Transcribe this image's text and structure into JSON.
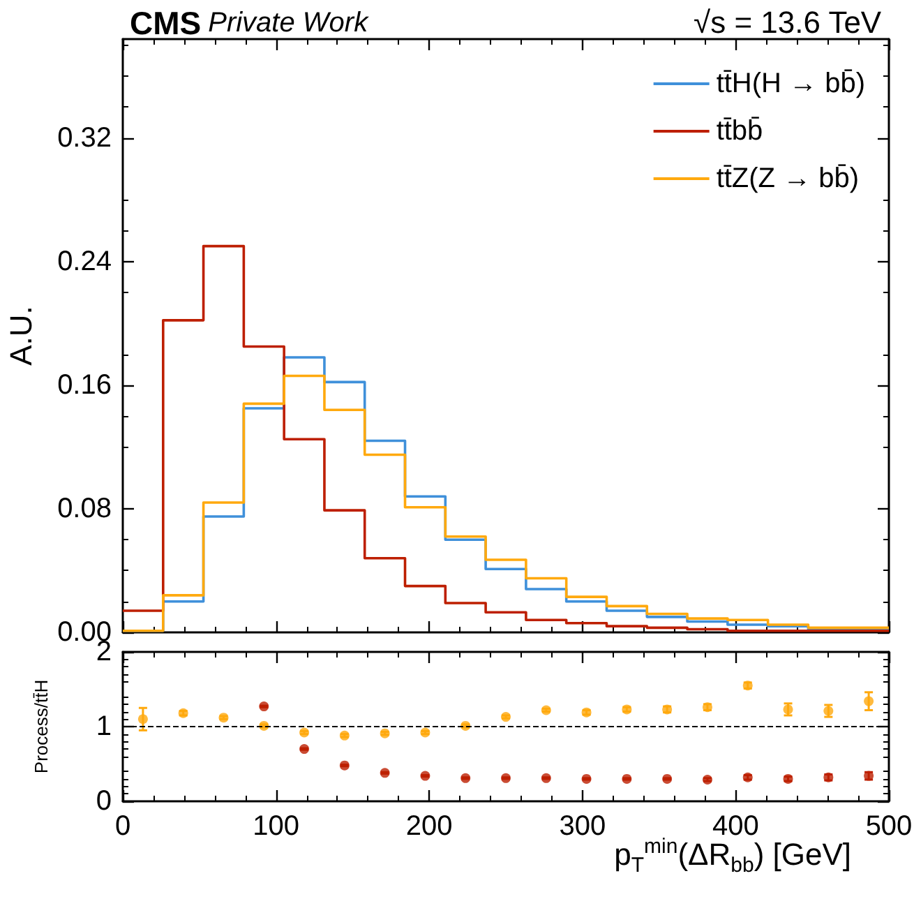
{
  "chart_data": [
    {
      "type": "histogram",
      "title": "CMS",
      "subtitle": "Private Work",
      "annotations": [
        "√s = 13.6 TeV"
      ],
      "ylabel": "A.U.",
      "bins": [
        0,
        26.32,
        52.63,
        78.95,
        105.26,
        131.58,
        157.89,
        184.21,
        210.53,
        236.84,
        263.16,
        289.47,
        315.79,
        342.11,
        368.42,
        394.74,
        421.05,
        447.37,
        473.68,
        500
      ],
      "xlim": [
        0,
        500
      ],
      "xticks": [
        0,
        100,
        200,
        300,
        400,
        500
      ],
      "ylim": [
        0,
        0.384
      ],
      "yticks": [
        {
          "value": 0,
          "label": "0.00"
        },
        {
          "value": 0.08,
          "label": "0.08"
        },
        {
          "value": 0.16,
          "label": "0.16"
        },
        {
          "value": 0.24,
          "label": "0.24"
        },
        {
          "value": 0.32,
          "label": "0.32"
        }
      ],
      "tick_labels": "y",
      "legend": "top right",
      "grid": false,
      "marker": "none",
      "line_style": "solid",
      "series": [
        {
          "name": "tt̄H(H → bb̄)",
          "color": "#3f90da",
          "values": [
            0.001,
            0.02,
            0.075,
            0.145,
            0.178,
            0.162,
            0.124,
            0.088,
            0.06,
            0.041,
            0.028,
            0.02,
            0.014,
            0.01,
            0.007,
            0.005,
            0.004,
            0.002,
            0.002
          ]
        },
        {
          "name": "tt̄bb̄",
          "color": "#bd1f01",
          "values": [
            0.014,
            0.202,
            0.25,
            0.185,
            0.125,
            0.079,
            0.048,
            0.03,
            0.019,
            0.013,
            0.008,
            0.006,
            0.004,
            0.003,
            0.002,
            0.001,
            0.001,
            0.001,
            0.001
          ]
        },
        {
          "name": "tt̄Z(Z → bb̄)",
          "color": "#ffa90e",
          "values": [
            0.001,
            0.024,
            0.084,
            0.148,
            0.166,
            0.144,
            0.115,
            0.081,
            0.062,
            0.047,
            0.035,
            0.023,
            0.017,
            0.012,
            0.009,
            0.008,
            0.005,
            0.003,
            0.003
          ]
        }
      ]
    },
    {
      "type": "scatter",
      "xlabel": "p$_{T}$$^{min}$(ΔR$_{bb}$) [GeV]",
      "ylabel": "Process/tt̄H",
      "x": [
        13.16,
        39.47,
        65.79,
        92.11,
        118.42,
        144.74,
        171.05,
        197.37,
        223.68,
        250,
        276.32,
        302.63,
        328.95,
        355.26,
        381.58,
        407.89,
        434.21,
        460.53,
        486.84
      ],
      "xlim": [
        0,
        500
      ],
      "xticks": [
        0,
        100,
        200,
        300,
        400,
        500
      ],
      "ylim": [
        0,
        2
      ],
      "yticks": [
        0,
        1,
        2
      ],
      "grid": false,
      "legend": false,
      "marker": "circle",
      "ref_lines": [
        {
          "axis": "y",
          "value": 1,
          "color": "#000000",
          "line_style": "dashed"
        }
      ],
      "series": [
        {
          "color": "#ffa90e",
          "values": [
            1.1,
            1.18,
            1.12,
            1.01,
            0.92,
            0.88,
            0.91,
            0.92,
            1.01,
            1.13,
            1.22,
            1.19,
            1.23,
            1.23,
            1.26,
            1.55,
            1.23,
            1.21,
            1.34
          ],
          "errors": [
            0.15,
            0.03,
            0.02,
            0.02,
            0.02,
            0.02,
            0.02,
            0.02,
            0.02,
            0.02,
            0.02,
            0.03,
            0.03,
            0.04,
            0.04,
            0.04,
            0.08,
            0.08,
            0.12
          ]
        },
        {
          "color": "#bd1f01",
          "values": [
            null,
            null,
            null,
            1.27,
            0.7,
            0.48,
            0.38,
            0.34,
            0.31,
            0.31,
            0.31,
            0.3,
            0.3,
            0.3,
            0.29,
            0.32,
            0.3,
            0.32,
            0.34
          ],
          "errors": [
            null,
            null,
            null,
            0.01,
            0.01,
            0.01,
            0.01,
            0.01,
            0.01,
            0.01,
            0.01,
            0.01,
            0.01,
            0.01,
            0.02,
            0.03,
            0.03,
            0.04,
            0.05
          ]
        }
      ]
    }
  ]
}
